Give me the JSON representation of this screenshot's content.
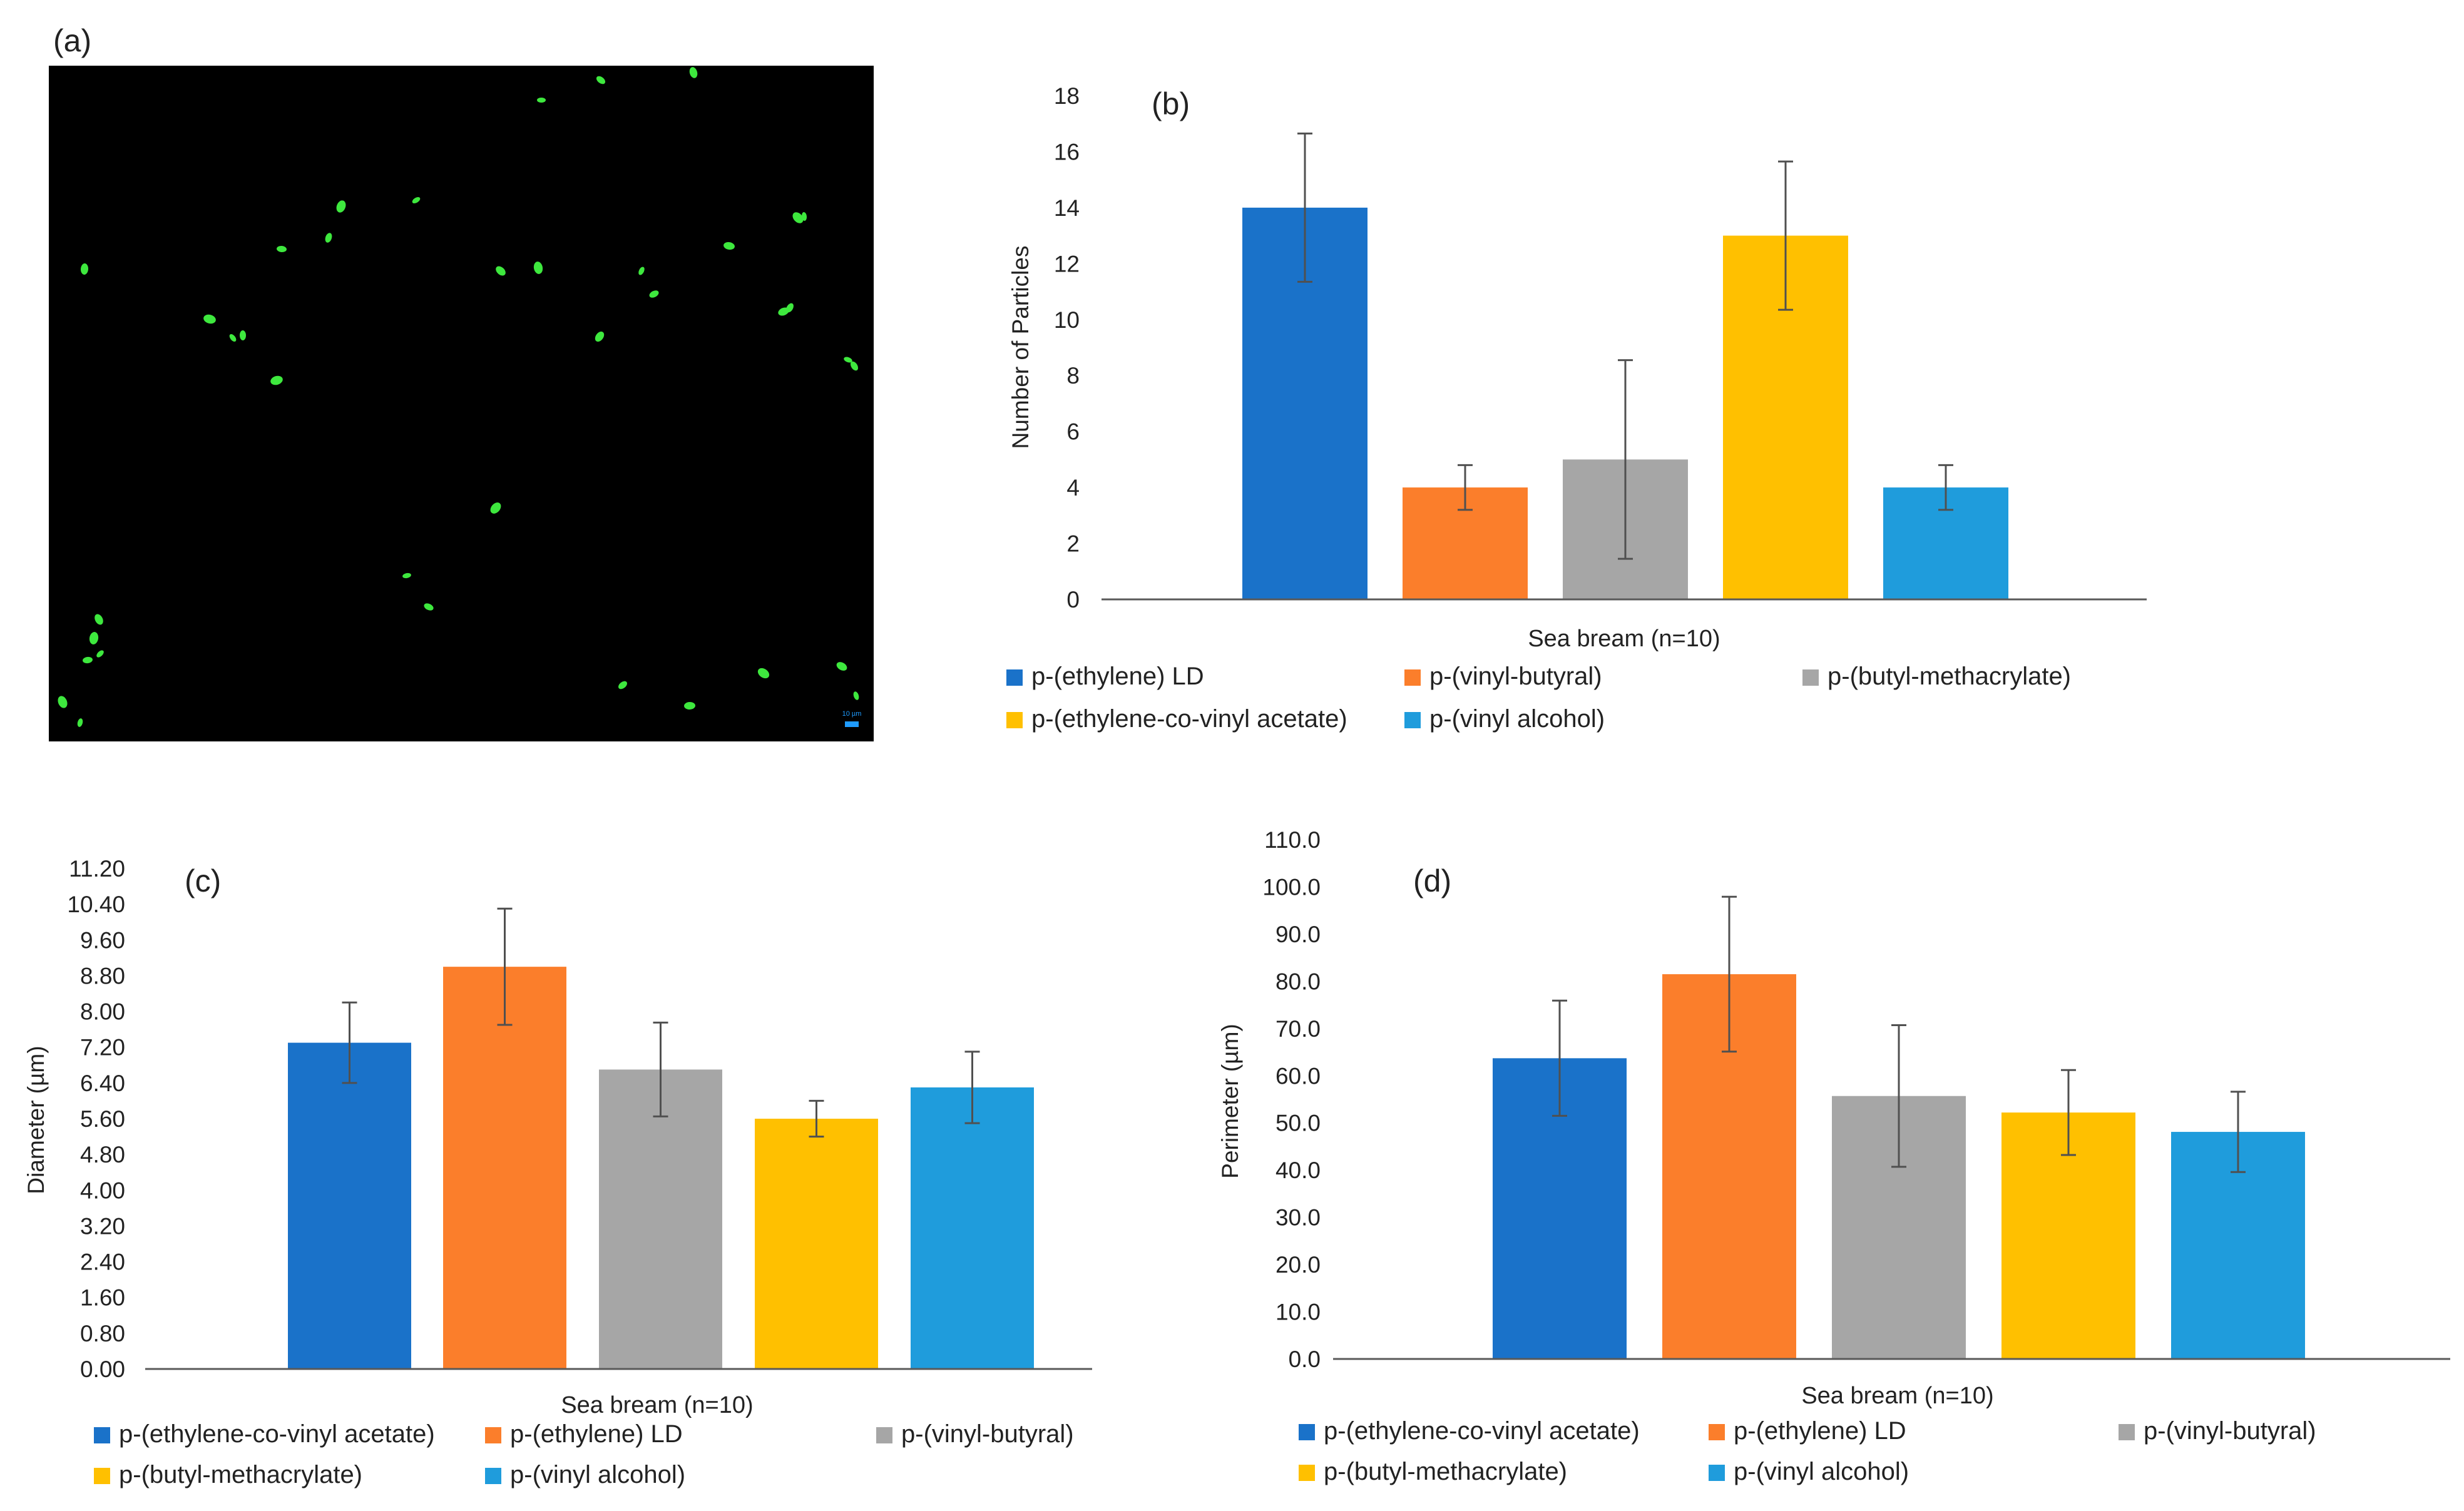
{
  "figure": {
    "panel_a": {
      "label": "(a)",
      "scale_bar_text": "10 µm"
    }
  },
  "colors": {
    "dark_blue": "#1a72c9",
    "orange": "#fb7e2b",
    "gray": "#a6a6a6",
    "gold": "#ffc000",
    "light_blue": "#1f9cdc",
    "axis": "#595959",
    "error": "#505050",
    "particle": "#3ee83e",
    "scale_bar": "#1f9cff"
  },
  "chart_data": [
    {
      "id": "b",
      "panel_label": "(b)",
      "type": "bar",
      "title": "",
      "xlabel": "Sea bream  (n=10)",
      "ylabel": "Number of Particles",
      "ylim": [
        0,
        18
      ],
      "yticks": [
        "0",
        "2",
        "4",
        "6",
        "8",
        "10",
        "12",
        "14",
        "16",
        "18"
      ],
      "categories": [
        "Sea bream  (n=10)"
      ],
      "series": [
        {
          "name": "p-(ethylene) LD",
          "color": "#1a72c9",
          "values": [
            14
          ],
          "error": [
            2.65
          ]
        },
        {
          "name": "p-(vinyl-butyral)",
          "color": "#fb7e2b",
          "values": [
            4
          ],
          "error": [
            0.8
          ]
        },
        {
          "name": "p-(butyl-methacrylate)",
          "color": "#a6a6a6",
          "values": [
            5
          ],
          "error": [
            3.55
          ]
        },
        {
          "name": "p-(ethylene-co-vinyl acetate)",
          "color": "#ffc000",
          "values": [
            13
          ],
          "error": [
            2.65
          ]
        },
        {
          "name": "p-(vinyl alcohol)",
          "color": "#1f9cdc",
          "values": [
            4
          ],
          "error": [
            0.8
          ]
        }
      ],
      "legend": "bottom",
      "grid": false
    },
    {
      "id": "c",
      "panel_label": "(c)",
      "type": "bar",
      "title": "",
      "xlabel": "Sea bream  (n=10)",
      "ylabel": "Diameter (µm)",
      "ylim": [
        0,
        11.2
      ],
      "yticks": [
        "0.00",
        "0.80",
        "1.60",
        "2.40",
        "3.20",
        "4.00",
        "4.80",
        "5.60",
        "6.40",
        "7.20",
        "8.00",
        "8.80",
        "9.60",
        "10.40",
        "11.20"
      ],
      "categories": [
        "Sea bream  (n=10)"
      ],
      "series": [
        {
          "name": "p-(ethylene-co-vinyl acetate)",
          "color": "#1a72c9",
          "values": [
            7.3
          ],
          "error": [
            0.9
          ]
        },
        {
          "name": "p-(ethylene) LD",
          "color": "#fb7e2b",
          "values": [
            9.0
          ],
          "error": [
            1.3
          ]
        },
        {
          "name": "p-(vinyl-butyral)",
          "color": "#a6a6a6",
          "values": [
            6.7
          ],
          "error": [
            1.05
          ]
        },
        {
          "name": "p-(butyl-methacrylate)",
          "color": "#ffc000",
          "values": [
            5.6
          ],
          "error": [
            0.4
          ]
        },
        {
          "name": "p-(vinyl alcohol)",
          "color": "#1f9cdc",
          "values": [
            6.3
          ],
          "error": [
            0.8
          ]
        }
      ],
      "legend": "bottom",
      "grid": false
    },
    {
      "id": "d",
      "panel_label": "(d)",
      "type": "bar",
      "title": "",
      "xlabel": "Sea bream  (n=10)",
      "ylabel": "Perimeter (µm)",
      "ylim": [
        0,
        110
      ],
      "yticks": [
        "0.0",
        "10.0",
        "20.0",
        "30.0",
        "40.0",
        "50.0",
        "60.0",
        "70.0",
        "80.0",
        "90.0",
        "100.0",
        "110.0"
      ],
      "categories": [
        "Sea bream  (n=10)"
      ],
      "series": [
        {
          "name": "p-(ethylene-co-vinyl acetate)",
          "color": "#1a72c9",
          "values": [
            63.7
          ],
          "error": [
            12.2
          ]
        },
        {
          "name": "p-(ethylene) LD",
          "color": "#fb7e2b",
          "values": [
            81.5
          ],
          "error": [
            16.4
          ]
        },
        {
          "name": "p-(vinyl-butyral)",
          "color": "#a6a6a6",
          "values": [
            55.7
          ],
          "error": [
            15.0
          ]
        },
        {
          "name": "p-(butyl-methacrylate)",
          "color": "#ffc000",
          "values": [
            52.2
          ],
          "error": [
            9.0
          ]
        },
        {
          "name": "p-(vinyl alcohol)",
          "color": "#1f9cdc",
          "values": [
            48.1
          ],
          "error": [
            8.5
          ]
        }
      ],
      "legend": "bottom",
      "grid": false
    }
  ]
}
